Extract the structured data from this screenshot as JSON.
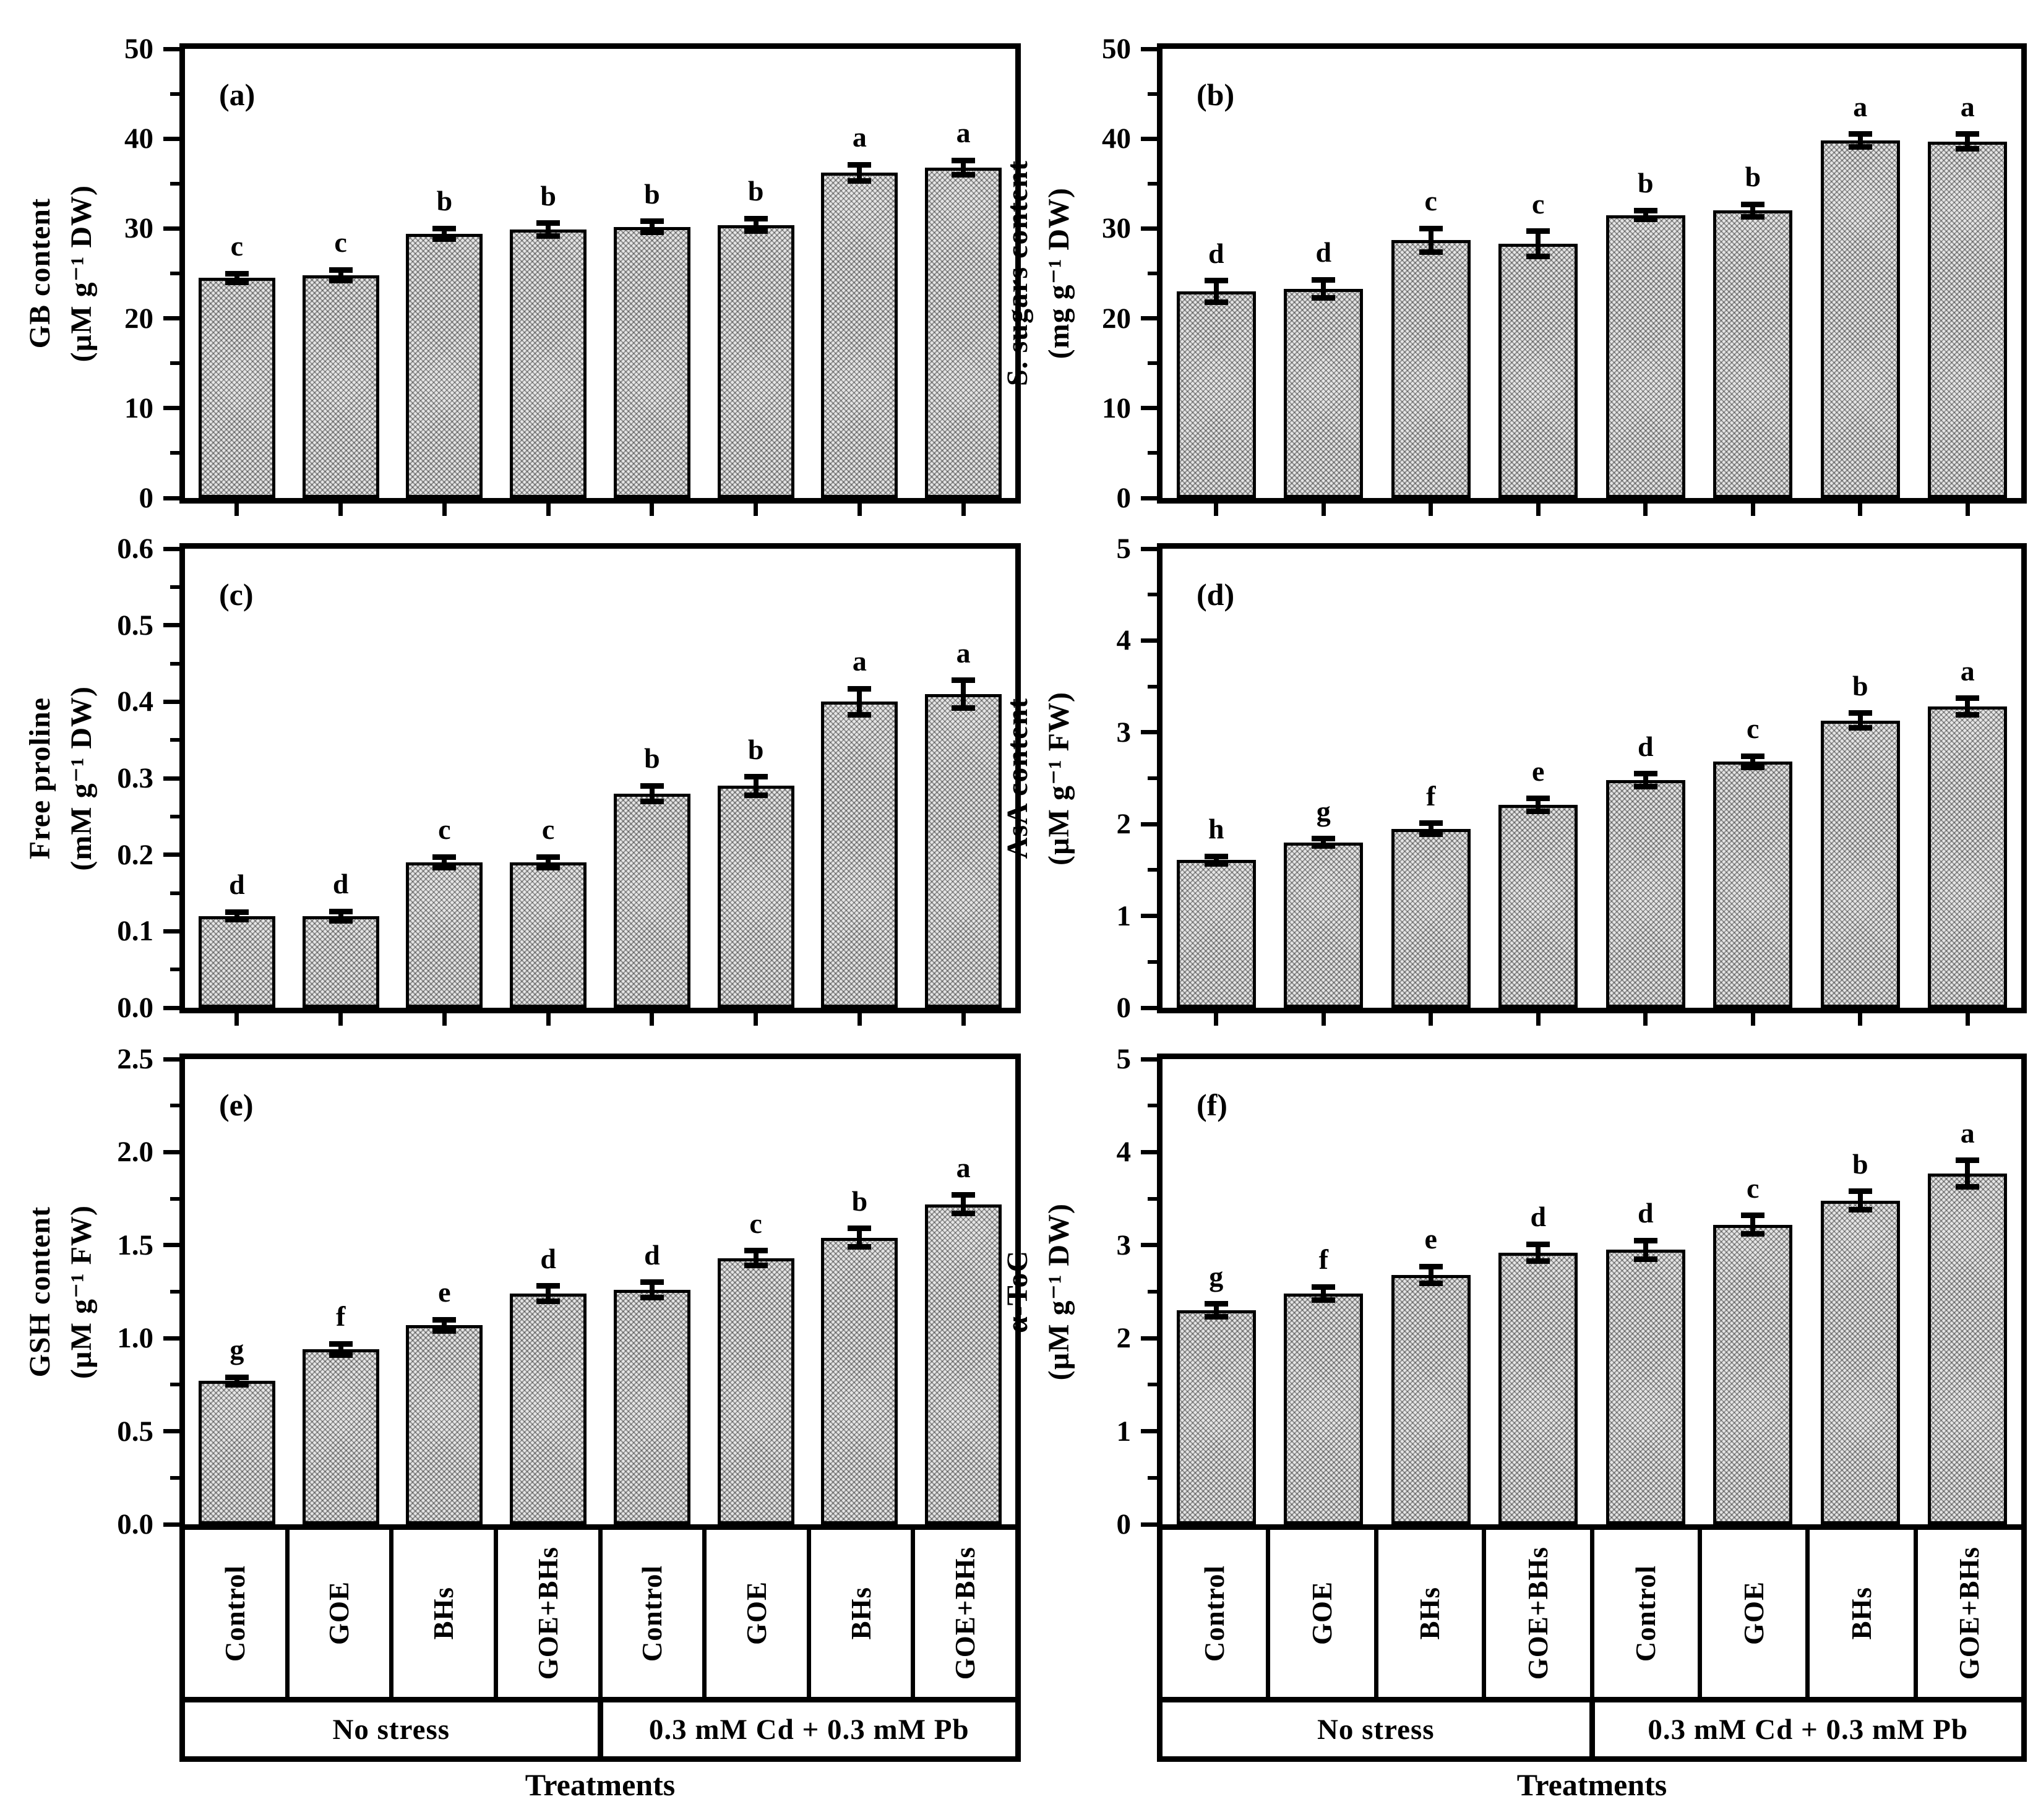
{
  "figure": {
    "x_axis_title": "Treatments",
    "group_labels": [
      "No stress",
      "0.3 mM Cd + 0.3 mM Pb"
    ],
    "treatments": [
      "Control",
      "GOE",
      "BHs",
      "GOE+BHs",
      "Control",
      "GOE",
      "BHs",
      "GOE+BHs"
    ],
    "ink_color": "#000000",
    "bar_fill_color": "#c9c9c9",
    "bar_pattern": "diagonal-crosshatch"
  },
  "chart_data": [
    {
      "type": "bar",
      "title": "(a)",
      "ylabel": "GB content (µM g⁻¹ DW)",
      "ylabel_lines": [
        "GB content",
        "(µM g⁻¹ DW)"
      ],
      "ylim": [
        0,
        50
      ],
      "ytick_step": 10,
      "yminor_step": 5,
      "decimals": 0,
      "grid": false,
      "categories": [
        "Control",
        "GOE",
        "BHs",
        "GOE+BHs",
        "Control",
        "GOE",
        "BHs",
        "GOE+BHs"
      ],
      "group_of_bars": [
        "No stress",
        "No stress",
        "No stress",
        "No stress",
        "0.3 mM Cd + 0.3 mM Pb",
        "0.3 mM Cd + 0.3 mM Pb",
        "0.3 mM Cd + 0.3 mM Pb",
        "0.3 mM Cd + 0.3 mM Pb"
      ],
      "values": [
        24.5,
        24.8,
        29.4,
        29.9,
        30.2,
        30.4,
        36.2,
        36.8
      ],
      "errors": [
        0.5,
        0.6,
        0.6,
        0.7,
        0.6,
        0.7,
        0.9,
        0.8
      ],
      "sig_letters": [
        "c",
        "c",
        "b",
        "b",
        "b",
        "b",
        "a",
        "a"
      ]
    },
    {
      "type": "bar",
      "title": "(b)",
      "ylabel": "S. sugars content (mg g⁻¹ DW)",
      "ylabel_lines": [
        "S. sugars content",
        "(mg g⁻¹ DW)"
      ],
      "ylim": [
        0,
        50
      ],
      "ytick_step": 10,
      "yminor_step": 5,
      "decimals": 0,
      "grid": false,
      "categories": [
        "Control",
        "GOE",
        "BHs",
        "GOE+BHs",
        "Control",
        "GOE",
        "BHs",
        "GOE+BHs"
      ],
      "group_of_bars": [
        "No stress",
        "No stress",
        "No stress",
        "No stress",
        "0.3 mM Cd + 0.3 mM Pb",
        "0.3 mM Cd + 0.3 mM Pb",
        "0.3 mM Cd + 0.3 mM Pb",
        "0.3 mM Cd + 0.3 mM Pb"
      ],
      "values": [
        23.0,
        23.3,
        28.7,
        28.3,
        31.5,
        32.0,
        39.8,
        39.7
      ],
      "errors": [
        1.2,
        1.0,
        1.3,
        1.4,
        0.5,
        0.7,
        0.7,
        0.8
      ],
      "sig_letters": [
        "d",
        "d",
        "c",
        "c",
        "b",
        "b",
        "a",
        "a"
      ]
    },
    {
      "type": "bar",
      "title": "(c)",
      "ylabel": "Free proline (mM g⁻¹ DW)",
      "ylabel_lines": [
        "Free proline",
        "(mM g⁻¹ DW)"
      ],
      "ylim": [
        0,
        0.6
      ],
      "ytick_step": 0.1,
      "yminor_step": 0.05,
      "decimals": 1,
      "grid": false,
      "categories": [
        "Control",
        "GOE",
        "BHs",
        "GOE+BHs",
        "Control",
        "GOE",
        "BHs",
        "GOE+BHs"
      ],
      "group_of_bars": [
        "No stress",
        "No stress",
        "No stress",
        "No stress",
        "0.3 mM Cd + 0.3 mM Pb",
        "0.3 mM Cd + 0.3 mM Pb",
        "0.3 mM Cd + 0.3 mM Pb",
        "0.3 mM Cd + 0.3 mM Pb"
      ],
      "values": [
        0.12,
        0.12,
        0.19,
        0.19,
        0.28,
        0.29,
        0.4,
        0.41
      ],
      "errors": [
        0.005,
        0.006,
        0.007,
        0.007,
        0.01,
        0.012,
        0.017,
        0.018
      ],
      "sig_letters": [
        "d",
        "d",
        "c",
        "c",
        "b",
        "b",
        "a",
        "a"
      ]
    },
    {
      "type": "bar",
      "title": "(d)",
      "ylabel": "AsA content (µM g⁻¹ FW)",
      "ylabel_lines": [
        "AsA content",
        "(µM g⁻¹ FW)"
      ],
      "ylim": [
        0,
        5
      ],
      "ytick_step": 1,
      "yminor_step": 0.5,
      "decimals": 0,
      "grid": false,
      "categories": [
        "Control",
        "GOE",
        "BHs",
        "GOE+BHs",
        "Control",
        "GOE",
        "BHs",
        "GOE+BHs"
      ],
      "group_of_bars": [
        "No stress",
        "No stress",
        "No stress",
        "No stress",
        "0.3 mM Cd + 0.3 mM Pb",
        "0.3 mM Cd + 0.3 mM Pb",
        "0.3 mM Cd + 0.3 mM Pb",
        "0.3 mM Cd + 0.3 mM Pb"
      ],
      "values": [
        1.61,
        1.8,
        1.95,
        2.21,
        2.48,
        2.68,
        3.13,
        3.28
      ],
      "errors": [
        0.04,
        0.04,
        0.06,
        0.07,
        0.07,
        0.06,
        0.08,
        0.09
      ],
      "sig_letters": [
        "h",
        "g",
        "f",
        "e",
        "d",
        "c",
        "b",
        "a"
      ]
    },
    {
      "type": "bar",
      "title": "(e)",
      "ylabel": "GSH content (µM g⁻¹ FW)",
      "ylabel_lines": [
        "GSH content",
        "(µM g⁻¹ FW)"
      ],
      "ylim": [
        0,
        2.5
      ],
      "ytick_step": 0.5,
      "yminor_step": 0.25,
      "decimals": 1,
      "grid": false,
      "categories": [
        "Control",
        "GOE",
        "BHs",
        "GOE+BHs",
        "Control",
        "GOE",
        "BHs",
        "GOE+BHs"
      ],
      "group_of_bars": [
        "No stress",
        "No stress",
        "No stress",
        "No stress",
        "0.3 mM Cd + 0.3 mM Pb",
        "0.3 mM Cd + 0.3 mM Pb",
        "0.3 mM Cd + 0.3 mM Pb",
        "0.3 mM Cd + 0.3 mM Pb"
      ],
      "values": [
        0.77,
        0.94,
        1.07,
        1.24,
        1.26,
        1.43,
        1.54,
        1.72
      ],
      "errors": [
        0.02,
        0.03,
        0.03,
        0.04,
        0.04,
        0.04,
        0.05,
        0.05
      ],
      "sig_letters": [
        "g",
        "f",
        "e",
        "d",
        "d",
        "c",
        "b",
        "a"
      ]
    },
    {
      "type": "bar",
      "title": "(f)",
      "ylabel": "α-ToC (µM g⁻¹ DW)",
      "ylabel_lines": [
        "α-ToC",
        "(µM g⁻¹ DW)"
      ],
      "ylim": [
        0,
        5
      ],
      "ytick_step": 1,
      "yminor_step": 0.5,
      "decimals": 0,
      "grid": false,
      "categories": [
        "Control",
        "GOE",
        "BHs",
        "GOE+BHs",
        "Control",
        "GOE",
        "BHs",
        "GOE+BHs"
      ],
      "group_of_bars": [
        "No stress",
        "No stress",
        "No stress",
        "No stress",
        "0.3 mM Cd + 0.3 mM Pb",
        "0.3 mM Cd + 0.3 mM Pb",
        "0.3 mM Cd + 0.3 mM Pb",
        "0.3 mM Cd + 0.3 mM Pb"
      ],
      "values": [
        2.3,
        2.48,
        2.68,
        2.92,
        2.95,
        3.22,
        3.48,
        3.77
      ],
      "errors": [
        0.07,
        0.07,
        0.09,
        0.09,
        0.1,
        0.1,
        0.1,
        0.14
      ],
      "sig_letters": [
        "g",
        "f",
        "e",
        "d",
        "d",
        "c",
        "b",
        "a"
      ]
    }
  ]
}
